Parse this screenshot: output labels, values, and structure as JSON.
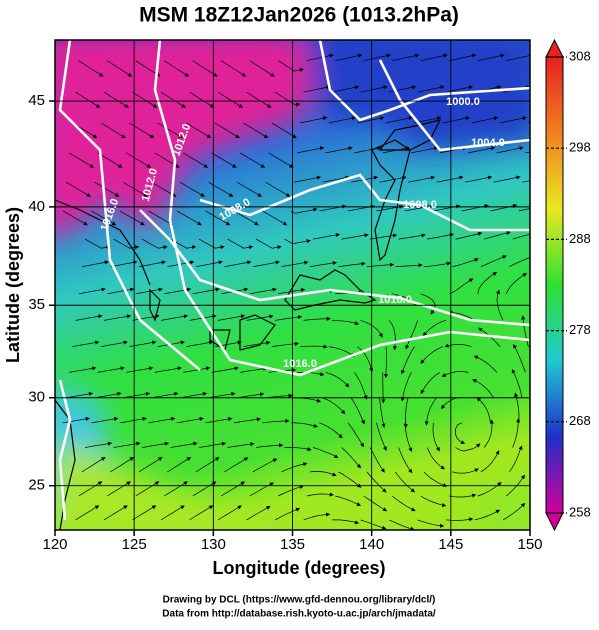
{
  "chart_data": {
    "type": "field-map",
    "title": "MSM 18Z12Jan2026 (1013.2hPa)",
    "x_label": "Longitude (degrees)",
    "y_label": "Latitude  (degrees)",
    "xlim": [
      120,
      150
    ],
    "ylim": [
      22.4,
      47.7
    ],
    "xticks": [
      120,
      125,
      130,
      135,
      140,
      145,
      150
    ],
    "yticks": [
      25,
      30,
      35,
      40,
      45
    ],
    "y_scale": "mercator",
    "grid": true,
    "contour_labels": [
      "1000.0",
      "1004.0",
      "1008.0",
      "1008.0",
      "1012.0",
      "1012.0",
      "1016.0",
      "1016.0",
      "1016.0"
    ],
    "colorbar": {
      "lim": [
        258,
        308
      ],
      "ticks": [
        258,
        268,
        278,
        288,
        298,
        308
      ],
      "colors": [
        "#d2009a",
        "#2030c8",
        "#20c8d0",
        "#30e030",
        "#e8e820",
        "#f08020",
        "#e82020"
      ]
    },
    "footer": [
      "Drawing by DCL (https://www.gfd-dennou.org/library/dcl/)",
      "Data from http://database.rish.kyoto-u.ac.jp/arch/jmadata/"
    ]
  }
}
